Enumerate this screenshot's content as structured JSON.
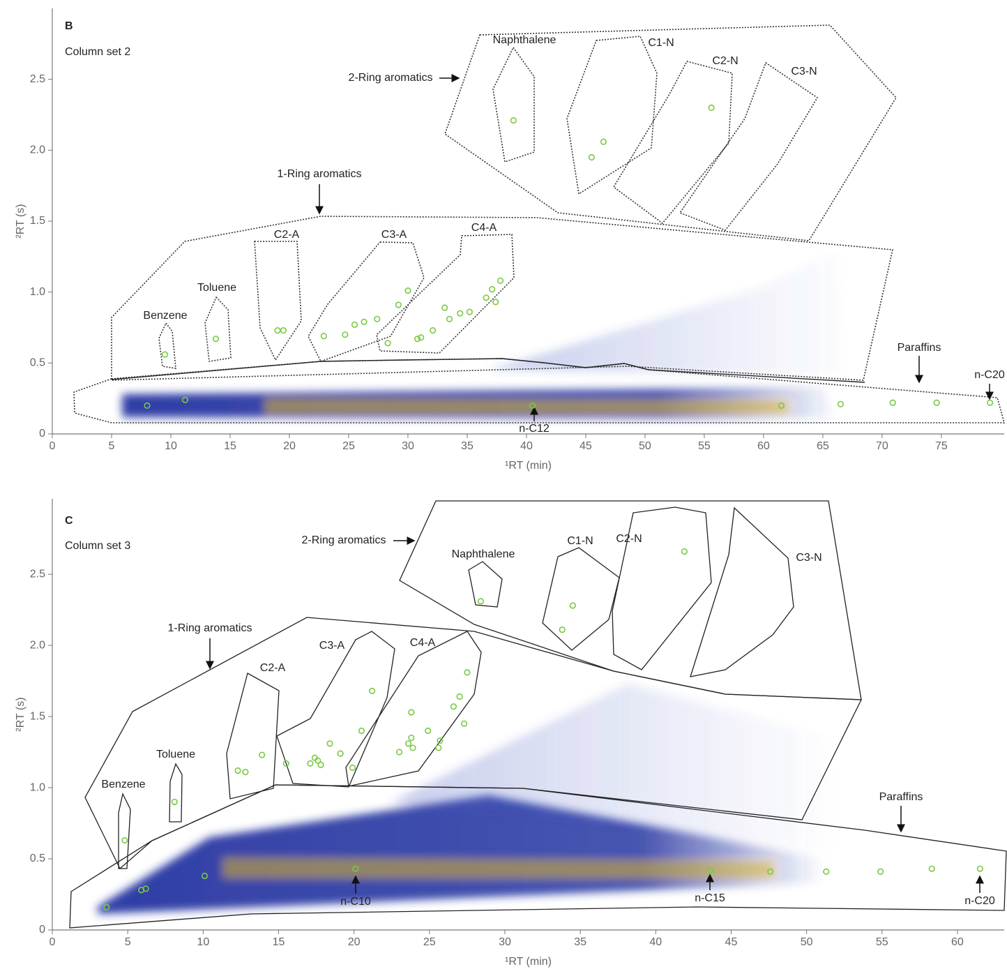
{
  "chart_data": [
    {
      "type": "scatter",
      "title": "B",
      "subtitle": "Column set 2",
      "x_label": "¹RT (min)",
      "y_label": "²RT (s)",
      "xlim": [
        0,
        80.3
      ],
      "ylim": [
        0,
        3.0
      ],
      "xticks": [
        0,
        5,
        10,
        15,
        20,
        25,
        30,
        35,
        40,
        45,
        50,
        55,
        60,
        65,
        70,
        75
      ],
      "yticks": [
        0,
        0.5,
        {
          "value": 1.0,
          "label": "1.0"
        },
        1.5,
        {
          "value": 2.0,
          "label": "2.0"
        },
        2.5
      ],
      "color": "#7ac943",
      "x": [
        9.5,
        8.0,
        11.2,
        13.8,
        19.0,
        19.5,
        22.9,
        24.7,
        25.5,
        26.3,
        27.4,
        28.3,
        29.2,
        30.0,
        30.8,
        31.1,
        32.1,
        33.1,
        33.5,
        34.4,
        35.2,
        36.6,
        37.1,
        37.8,
        37.4,
        38.9,
        45.5,
        46.5,
        55.6,
        40.5,
        61.5,
        66.5,
        70.9,
        74.6,
        79.1
      ],
      "values": [
        0.56,
        0.2,
        0.24,
        0.67,
        0.73,
        0.73,
        0.69,
        0.7,
        0.77,
        0.79,
        0.81,
        0.64,
        0.91,
        1.01,
        0.67,
        0.68,
        0.73,
        0.89,
        0.81,
        0.85,
        0.86,
        0.96,
        1.02,
        1.08,
        0.93,
        2.21,
        1.95,
        2.06,
        2.3,
        0.2,
        0.2,
        0.21,
        0.22,
        0.22,
        0.22
      ],
      "annotations": [
        "Naphthalene",
        "C1-N",
        "C2-N",
        "C3-N",
        "2-Ring aromatics",
        "1-Ring aromatics",
        "C2-A",
        "C3-A",
        "C4-A",
        "Toluene",
        "Benzene",
        "Paraffins",
        "n-C20",
        "n-C12"
      ]
    },
    {
      "type": "scatter",
      "title": "C",
      "subtitle": "Column set 3",
      "x_label": "¹RT (min)",
      "y_label": "²RT (s)",
      "xlim": [
        0,
        63.1
      ],
      "ylim": [
        0,
        3.03
      ],
      "xticks": [
        0,
        5,
        10,
        15,
        20,
        25,
        30,
        35,
        40,
        45,
        50,
        55,
        60
      ],
      "yticks": [
        0,
        0.5,
        {
          "value": 1.0,
          "label": "1.0"
        },
        1.5,
        {
          "value": 2.0,
          "label": "2.0"
        },
        2.5
      ],
      "color": "#7ac943",
      "x": [
        3.6,
        4.8,
        5.9,
        6.2,
        8.1,
        10.1,
        12.3,
        12.8,
        13.9,
        15.5,
        17.1,
        17.4,
        17.6,
        17.8,
        18.4,
        19.1,
        19.9,
        20.5,
        21.2,
        23.0,
        23.6,
        23.8,
        23.8,
        23.9,
        24.9,
        25.6,
        25.7,
        26.6,
        27.0,
        27.3,
        27.5,
        28.4,
        33.8,
        34.5,
        41.9,
        20.1,
        43.6,
        47.6,
        51.3,
        54.9,
        58.3,
        61.5
      ],
      "values": [
        0.16,
        0.63,
        0.28,
        0.29,
        0.9,
        0.38,
        1.12,
        1.11,
        1.23,
        1.17,
        1.17,
        1.21,
        1.19,
        1.16,
        1.31,
        1.24,
        1.14,
        1.4,
        1.68,
        1.25,
        1.31,
        1.35,
        1.53,
        1.28,
        1.4,
        1.28,
        1.33,
        1.57,
        1.64,
        1.45,
        1.81,
        2.31,
        2.11,
        2.28,
        2.66,
        0.43,
        0.42,
        0.41,
        0.41,
        0.41,
        0.43,
        0.43
      ],
      "annotations": [
        "Naphthalene",
        "C1-N",
        "C2-N",
        "C3-N",
        "2-Ring aromatics",
        "1-Ring aromatics",
        "C2-A",
        "C3-A",
        "C4-A",
        "Toluene",
        "Benzene",
        "Paraffins",
        "n-C10",
        "n-C15",
        "n-C20"
      ]
    }
  ]
}
